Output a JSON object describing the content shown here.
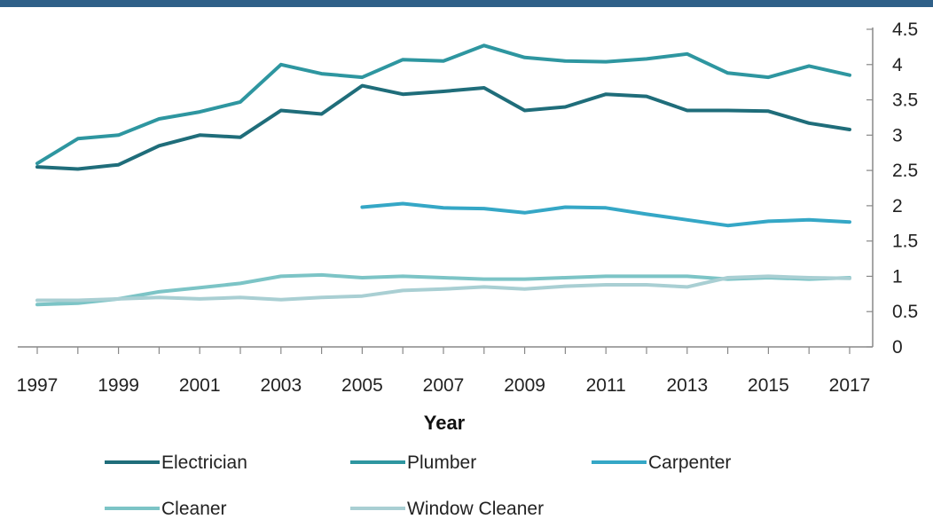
{
  "theme": {
    "top_bar_color": "#2f6088",
    "axis_color": "#888888"
  },
  "chart_data": {
    "type": "line",
    "xlabel": "Year",
    "ylabel": "",
    "x": [
      1997,
      1998,
      1999,
      2000,
      2001,
      2002,
      2003,
      2004,
      2005,
      2006,
      2007,
      2008,
      2009,
      2010,
      2011,
      2012,
      2013,
      2014,
      2015,
      2016,
      2017
    ],
    "x_ticks": [
      "1997",
      "1999",
      "2001",
      "2003",
      "2005",
      "2007",
      "2009",
      "2011",
      "2013",
      "2015",
      "2017"
    ],
    "y_ticks": [
      "0",
      "0.5",
      "1",
      "1.5",
      "2",
      "2.5",
      "3",
      "3.5",
      "4",
      "4.5"
    ],
    "ylim": [
      0,
      4.5
    ],
    "y_axis_side": "right",
    "grid": false,
    "legend_position": "bottom",
    "series": [
      {
        "name": "Electrician",
        "color": "#1f6d7a",
        "values": [
          2.55,
          2.52,
          2.58,
          2.85,
          3.0,
          2.97,
          3.35,
          3.3,
          3.7,
          3.58,
          3.62,
          3.67,
          3.35,
          3.4,
          3.58,
          3.55,
          3.35,
          3.35,
          3.34,
          3.17,
          3.08
        ]
      },
      {
        "name": "Plumber",
        "color": "#2e96a0",
        "values": [
          2.6,
          2.95,
          3.0,
          3.23,
          3.33,
          3.47,
          4.0,
          3.87,
          3.82,
          4.07,
          4.05,
          4.27,
          4.1,
          4.05,
          4.04,
          4.08,
          4.15,
          3.88,
          3.82,
          3.98,
          3.85
        ]
      },
      {
        "name": "Carpenter",
        "color": "#35a7c6",
        "values": [
          null,
          null,
          null,
          null,
          null,
          null,
          null,
          null,
          1.98,
          2.03,
          1.97,
          1.96,
          1.9,
          1.98,
          1.97,
          1.88,
          1.8,
          1.72,
          1.78,
          1.8,
          1.77
        ]
      },
      {
        "name": "Cleaner",
        "color": "#7cc4c6",
        "values": [
          0.6,
          0.62,
          0.68,
          0.78,
          0.84,
          0.9,
          1.0,
          1.02,
          0.98,
          1.0,
          0.98,
          0.96,
          0.96,
          0.98,
          1.0,
          1.0,
          1.0,
          0.96,
          0.98,
          0.96,
          0.98
        ]
      },
      {
        "name": "Window Cleaner",
        "color": "#a9cfd3",
        "values": [
          0.66,
          0.66,
          0.68,
          0.7,
          0.68,
          0.7,
          0.67,
          0.7,
          0.72,
          0.8,
          0.82,
          0.85,
          0.82,
          0.86,
          0.88,
          0.88,
          0.85,
          0.98,
          1.0,
          0.98,
          0.97
        ]
      }
    ]
  }
}
